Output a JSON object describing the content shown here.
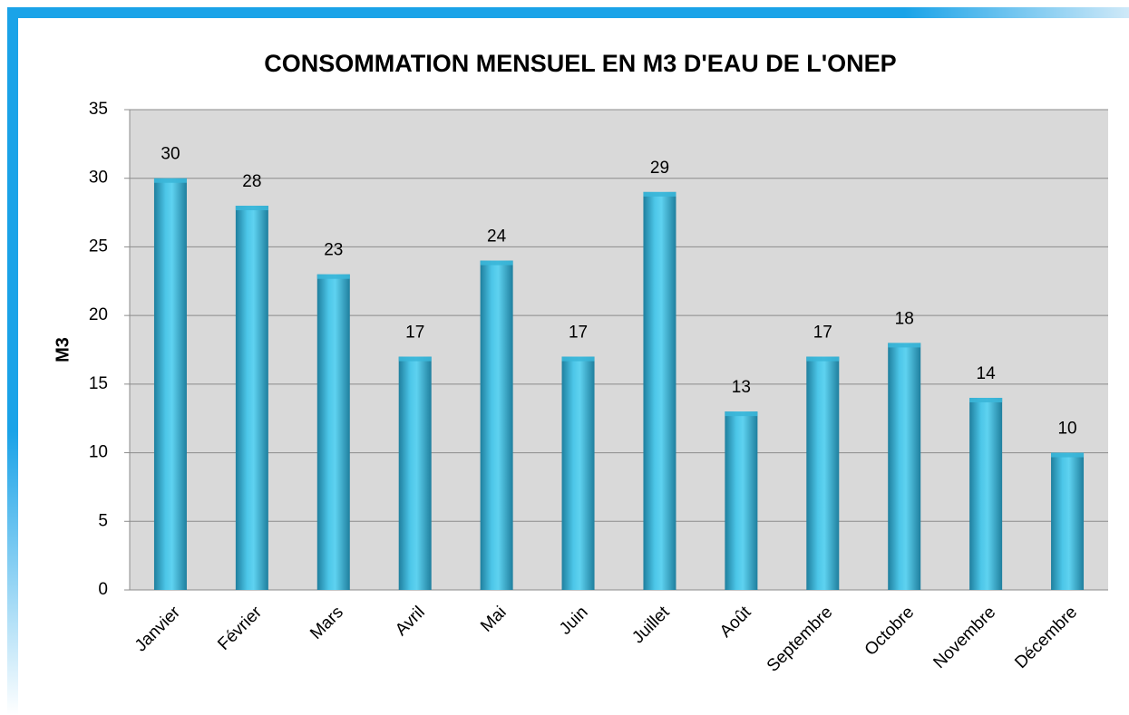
{
  "chart_data": {
    "type": "bar",
    "title": "CONSOMMATION MENSUEL EN M3 D'EAU DE L'ONEP",
    "y_label": "M3",
    "categories": [
      "Janvier",
      "Février",
      "Mars",
      "Avril",
      "Mai",
      "Juin",
      "Juillet",
      "Août",
      "Septembre",
      "Octobre",
      "Novembre",
      "Décembre"
    ],
    "values": [
      30,
      28,
      23,
      17,
      24,
      17,
      29,
      13,
      17,
      18,
      14,
      10
    ],
    "color": "#3bb6d8",
    "ylim": [
      0,
      35
    ],
    "yticks": [
      0,
      5,
      10,
      15,
      20,
      25,
      30,
      35
    ],
    "grid": true
  }
}
